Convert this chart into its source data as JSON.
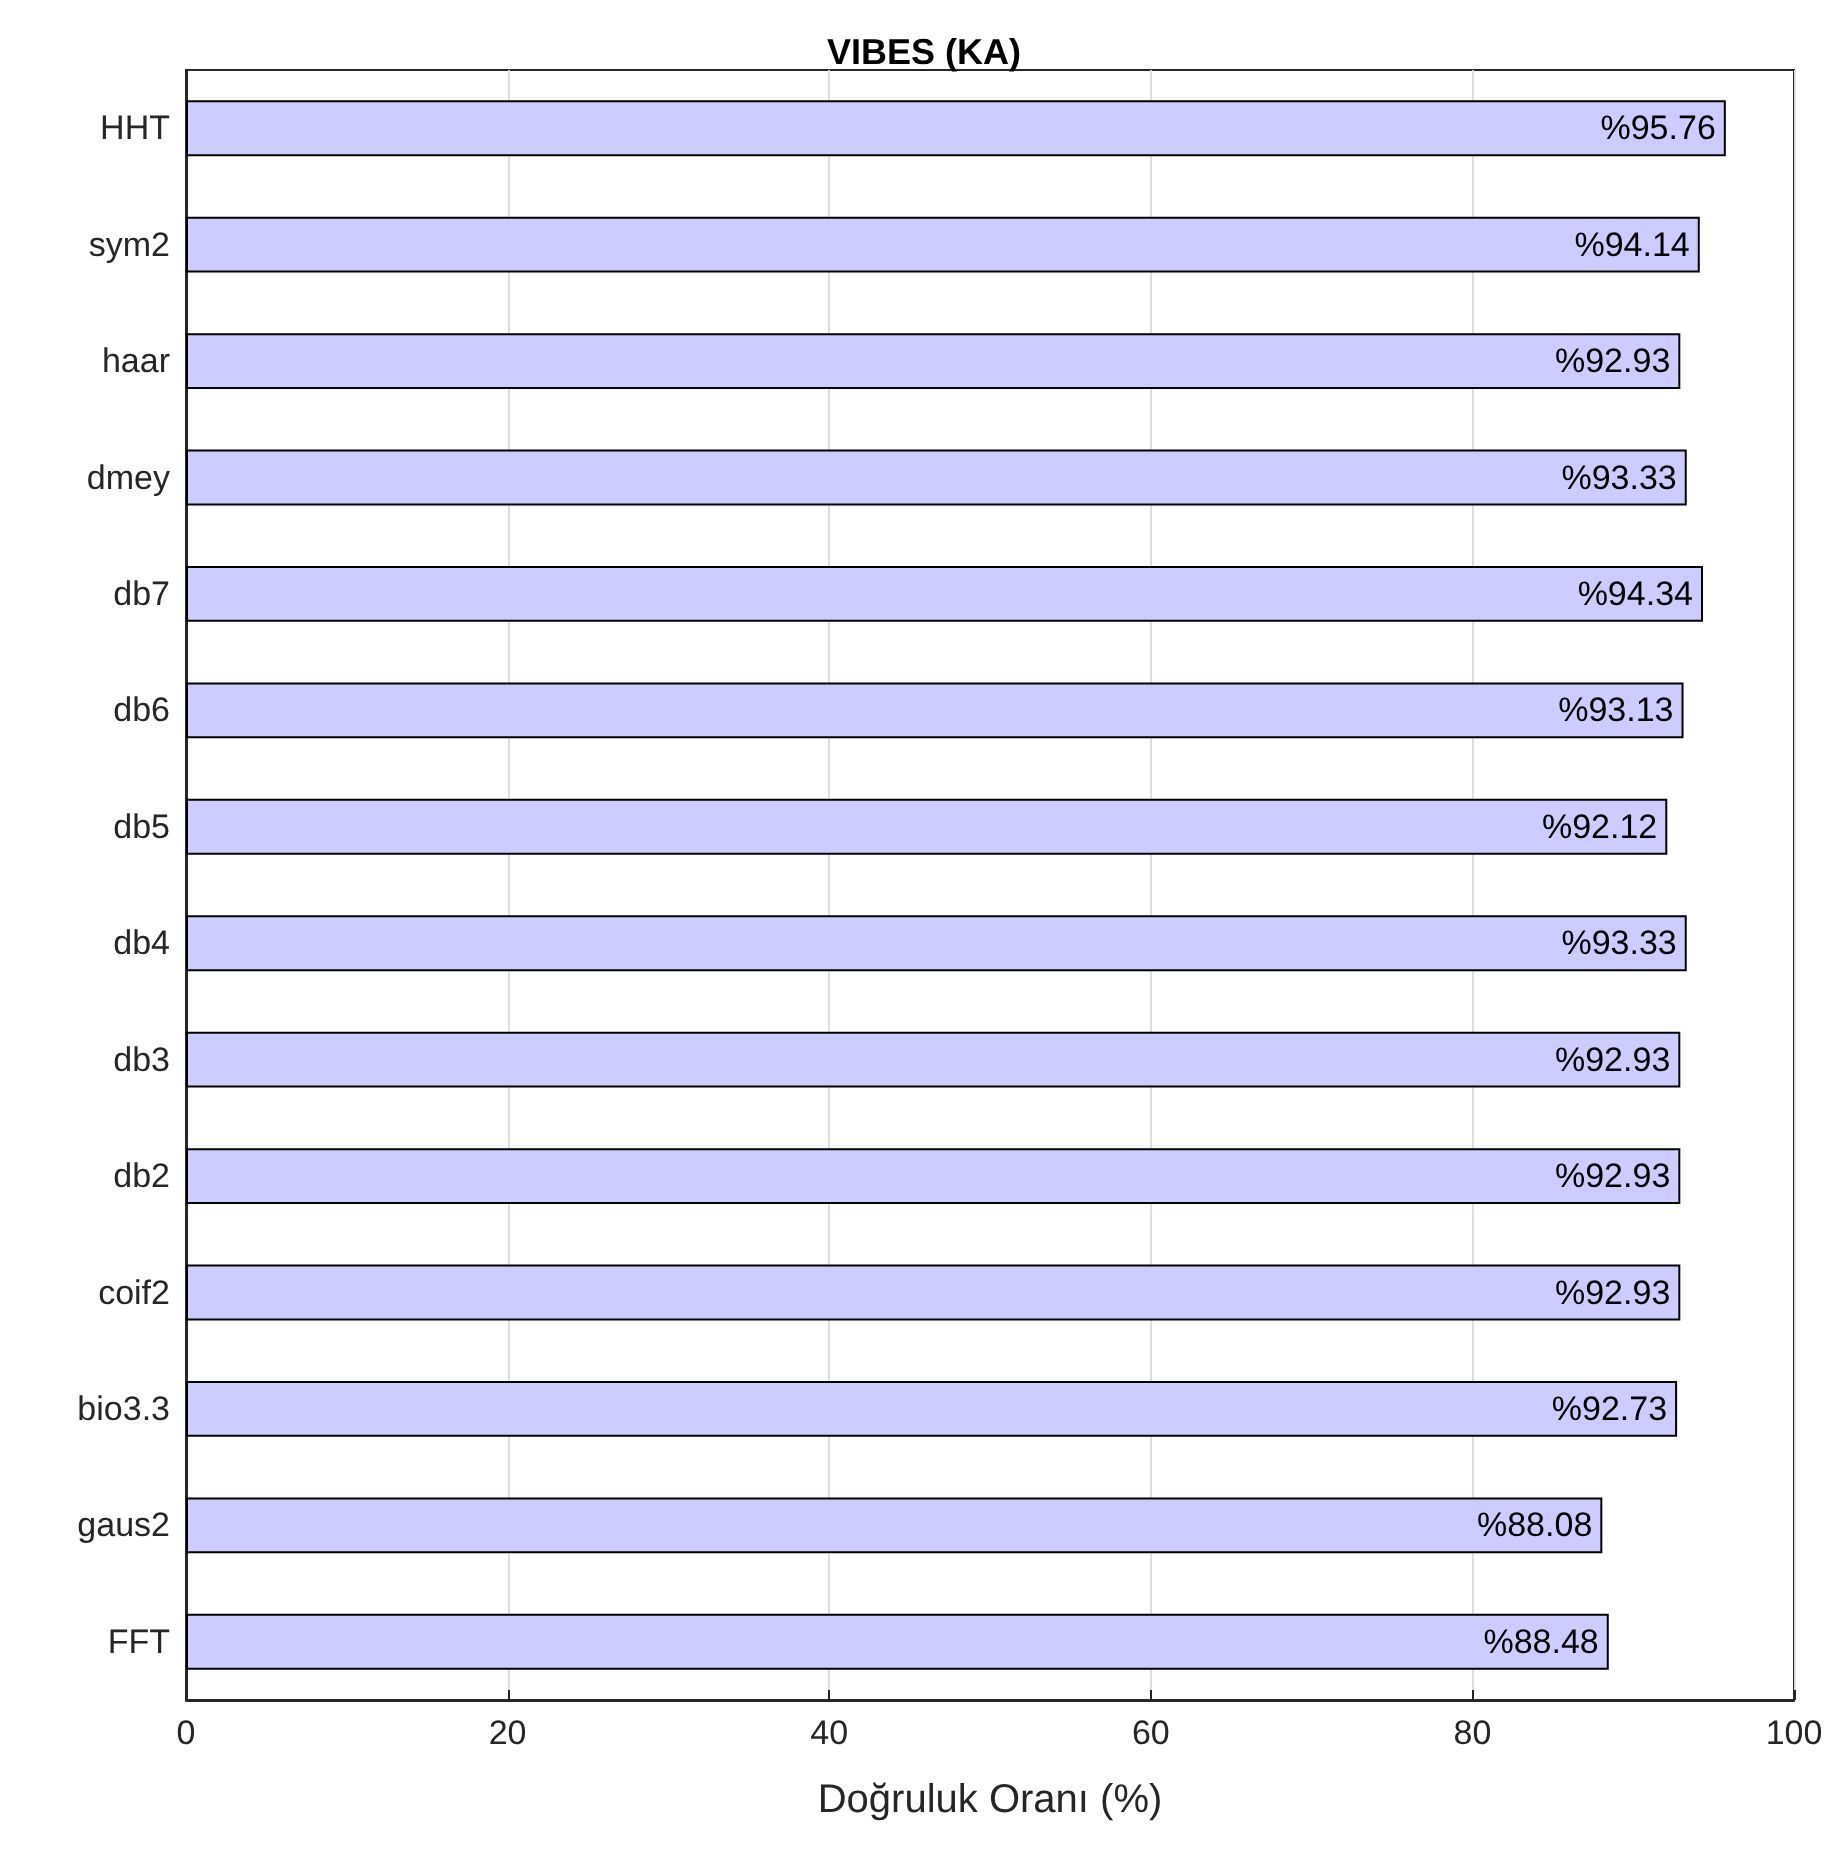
{
  "chart_data": {
    "type": "bar",
    "orientation": "horizontal",
    "title": "VIBES (KA)",
    "xlabel": "Doğruluk Oranı (%)",
    "categories": [
      "HHT",
      "sym2",
      "haar",
      "dmey",
      "db7",
      "db6",
      "db5",
      "db4",
      "db3",
      "db2",
      "coif2",
      "bio3.3",
      "gaus2",
      "FFT"
    ],
    "values": [
      95.76,
      94.14,
      92.93,
      93.33,
      94.34,
      93.13,
      92.12,
      93.33,
      92.93,
      92.93,
      92.93,
      92.73,
      88.08,
      88.48
    ],
    "value_labels": [
      "%95.76",
      "%94.14",
      "%92.93",
      "%93.33",
      "%94.34",
      "%93.13",
      "%92.12",
      "%93.33",
      "%92.93",
      "%92.93",
      "%92.93",
      "%92.73",
      "%88.08",
      "%88.48"
    ],
    "color": "#ccccff",
    "xlim": [
      0,
      100
    ],
    "xticks": [
      0,
      20,
      40,
      60,
      80,
      100
    ],
    "grid": "x"
  }
}
